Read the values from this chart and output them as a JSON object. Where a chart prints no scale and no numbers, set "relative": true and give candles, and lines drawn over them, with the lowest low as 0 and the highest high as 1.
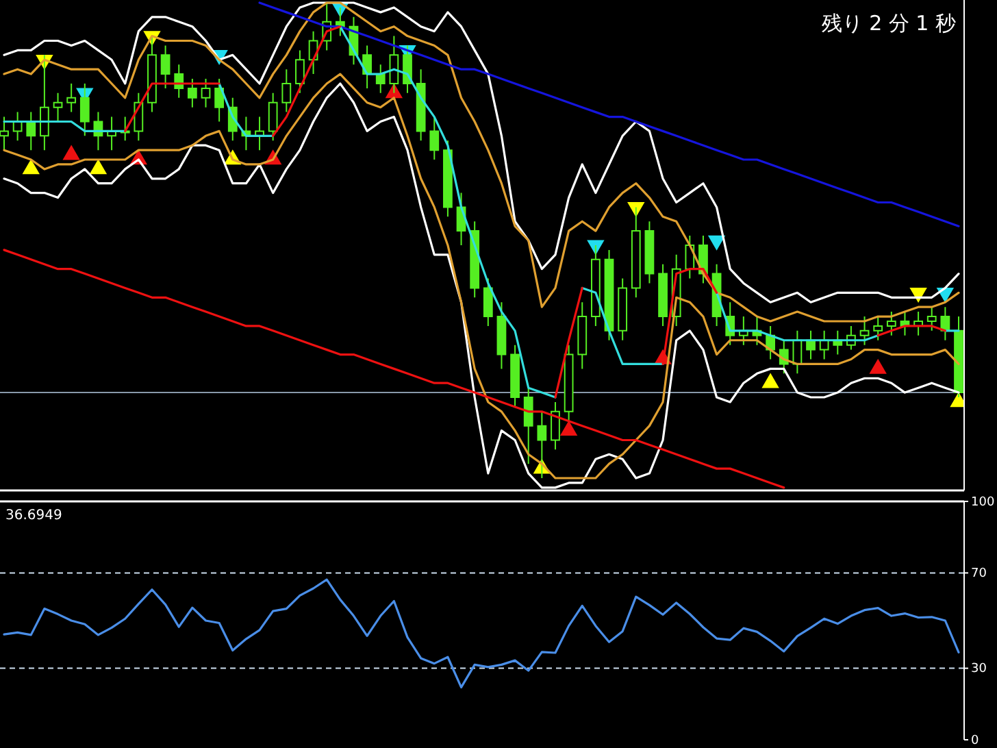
{
  "chart_data": [
    {
      "type": "candlestick",
      "relative": true,
      "tick_labels": false,
      "color": "#55ee22",
      "annotations": [
        "残り 2 分 1 秒"
      ],
      "categories": [
        null,
        null,
        null,
        null,
        null,
        null,
        null,
        null,
        null,
        null,
        null,
        null,
        null,
        null,
        null,
        null,
        null,
        null,
        null,
        null,
        null,
        null,
        null,
        null,
        null,
        null,
        null,
        null,
        null,
        null,
        null,
        null,
        null,
        null,
        null,
        null,
        null,
        null,
        null,
        null,
        null,
        null,
        null,
        null,
        null,
        null,
        null,
        null,
        null,
        null,
        null,
        null,
        null,
        null,
        null,
        null,
        null,
        null,
        null,
        null,
        null,
        null,
        null,
        null,
        null,
        null,
        null,
        null,
        null,
        null,
        null,
        null
      ],
      "ohlc": [
        [
          0.72,
          0.76,
          0.69,
          0.73
        ],
        [
          0.73,
          0.77,
          0.71,
          0.75
        ],
        [
          0.75,
          0.77,
          0.69,
          0.72
        ],
        [
          0.72,
          0.89,
          0.69,
          0.78
        ],
        [
          0.78,
          0.81,
          0.75,
          0.79
        ],
        [
          0.79,
          0.83,
          0.77,
          0.8
        ],
        [
          0.8,
          0.83,
          0.72,
          0.75
        ],
        [
          0.75,
          0.77,
          0.69,
          0.72
        ],
        [
          0.72,
          0.76,
          0.69,
          0.73
        ],
        [
          0.73,
          0.76,
          0.71,
          0.73
        ],
        [
          0.73,
          0.81,
          0.71,
          0.79
        ],
        [
          0.79,
          0.93,
          0.77,
          0.89
        ],
        [
          0.89,
          0.91,
          0.82,
          0.85
        ],
        [
          0.85,
          0.87,
          0.8,
          0.82
        ],
        [
          0.82,
          0.84,
          0.78,
          0.8
        ],
        [
          0.8,
          0.84,
          0.78,
          0.82
        ],
        [
          0.82,
          0.84,
          0.75,
          0.78
        ],
        [
          0.78,
          0.8,
          0.71,
          0.73
        ],
        [
          0.73,
          0.76,
          0.69,
          0.72
        ],
        [
          0.72,
          0.76,
          0.69,
          0.73
        ],
        [
          0.73,
          0.81,
          0.71,
          0.79
        ],
        [
          0.79,
          0.86,
          0.77,
          0.83
        ],
        [
          0.83,
          0.9,
          0.81,
          0.88
        ],
        [
          0.88,
          0.94,
          0.85,
          0.92
        ],
        [
          0.92,
          1,
          0.9,
          0.96
        ],
        [
          0.96,
          0.99,
          0.93,
          0.95
        ],
        [
          0.95,
          0.97,
          0.87,
          0.89
        ],
        [
          0.89,
          0.91,
          0.82,
          0.85
        ],
        [
          0.85,
          0.87,
          0.81,
          0.83
        ],
        [
          0.83,
          0.93,
          0.81,
          0.89
        ],
        [
          0.89,
          0.91,
          0.81,
          0.83
        ],
        [
          0.83,
          0.86,
          0.71,
          0.73
        ],
        [
          0.73,
          0.76,
          0.67,
          0.69
        ],
        [
          0.69,
          0.71,
          0.55,
          0.57
        ],
        [
          0.57,
          0.6,
          0.49,
          0.52
        ],
        [
          0.52,
          0.54,
          0.38,
          0.4
        ],
        [
          0.4,
          0.42,
          0.32,
          0.34
        ],
        [
          0.34,
          0.37,
          0.23,
          0.26
        ],
        [
          0.26,
          0.28,
          0.15,
          0.17
        ],
        [
          0.17,
          0.19,
          0.03,
          0.11
        ],
        [
          0.11,
          0.14,
          0,
          0.08
        ],
        [
          0.08,
          0.16,
          0.06,
          0.14
        ],
        [
          0.14,
          0.28,
          0.12,
          0.26
        ],
        [
          0.26,
          0.37,
          0.23,
          0.34
        ],
        [
          0.34,
          0.49,
          0.32,
          0.46
        ],
        [
          0.46,
          0.48,
          0.29,
          0.31
        ],
        [
          0.31,
          0.42,
          0.29,
          0.4
        ],
        [
          0.4,
          0.57,
          0.38,
          0.52
        ],
        [
          0.52,
          0.54,
          0.41,
          0.43
        ],
        [
          0.43,
          0.45,
          0.32,
          0.34
        ],
        [
          0.34,
          0.47,
          0.32,
          0.44
        ],
        [
          0.44,
          0.51,
          0.42,
          0.49
        ],
        [
          0.49,
          0.51,
          0.41,
          0.43
        ],
        [
          0.43,
          0.45,
          0.32,
          0.34
        ],
        [
          0.34,
          0.37,
          0.28,
          0.3
        ],
        [
          0.3,
          0.34,
          0.28,
          0.31
        ],
        [
          0.31,
          0.34,
          0.28,
          0.3
        ],
        [
          0.3,
          0.32,
          0.25,
          0.27
        ],
        [
          0.27,
          0.29,
          0.22,
          0.24
        ],
        [
          0.24,
          0.31,
          0.22,
          0.29
        ],
        [
          0.29,
          0.31,
          0.25,
          0.27
        ],
        [
          0.27,
          0.31,
          0.25,
          0.29
        ],
        [
          0.29,
          0.31,
          0.26,
          0.28
        ],
        [
          0.28,
          0.32,
          0.27,
          0.3
        ],
        [
          0.3,
          0.34,
          0.28,
          0.31
        ],
        [
          0.31,
          0.34,
          0.29,
          0.32
        ],
        [
          0.32,
          0.35,
          0.3,
          0.33
        ],
        [
          0.33,
          0.35,
          0.3,
          0.32
        ],
        [
          0.32,
          0.35,
          0.3,
          0.33
        ],
        [
          0.33,
          0.36,
          0.31,
          0.34
        ],
        [
          0.34,
          0.36,
          0.29,
          0.31
        ],
        [
          0.31,
          0.34,
          0.17,
          0.18
        ]
      ],
      "series": [
        {
          "type": "line",
          "color": "#ffffff",
          "values": [
            0.89,
            0.9,
            0.9,
            0.92,
            0.92,
            0.91,
            0.92,
            0.9,
            0.88,
            0.83,
            0.94,
            0.97,
            0.97,
            0.96,
            0.95,
            0.92,
            0.88,
            0.89,
            0.86,
            0.83,
            0.89,
            0.95,
            0.99,
            1.0,
            1.0,
            1.0,
            1.0,
            0.99,
            0.98,
            0.99,
            0.97,
            0.95,
            0.94,
            0.98,
            0.95,
            0.9,
            0.85,
            0.72,
            0.54,
            0.5,
            0.44,
            0.47,
            0.59,
            0.66,
            0.6,
            0.66,
            0.72,
            0.75,
            0.73,
            0.63,
            0.58,
            0.6,
            0.62,
            0.57,
            0.44,
            0.41,
            0.39,
            0.37,
            0.38,
            0.39,
            0.37,
            0.38,
            0.39,
            0.39,
            0.39,
            0.39,
            0.38,
            0.38,
            0.38,
            0.38,
            0.4,
            0.43
          ]
        },
        {
          "type": "line",
          "color": "#ffffff",
          "values": [
            0.63,
            0.62,
            0.6,
            0.6,
            0.59,
            0.63,
            0.65,
            0.62,
            0.62,
            0.65,
            0.67,
            0.63,
            0.63,
            0.65,
            0.7,
            0.7,
            0.69,
            0.62,
            0.62,
            0.66,
            0.6,
            0.65,
            0.69,
            0.75,
            0.8,
            0.83,
            0.79,
            0.73,
            0.75,
            0.76,
            0.69,
            0.57,
            0.47,
            0.47,
            0.37,
            0.17,
            0.01,
            0.1,
            0.08,
            0.01,
            -0.02,
            -0.02,
            -0.01,
            -0.01,
            0.04,
            0.05,
            0.04,
            0.0,
            0.01,
            0.08,
            0.29,
            0.31,
            0.27,
            0.17,
            0.16,
            0.2,
            0.22,
            0.23,
            0.23,
            0.18,
            0.17,
            0.17,
            0.18,
            0.2,
            0.21,
            0.21,
            0.2,
            0.18,
            0.19,
            0.2,
            0.19,
            0.18
          ]
        },
        {
          "type": "line",
          "color": "#e0a030",
          "values": [
            0.85,
            0.86,
            0.85,
            0.88,
            0.87,
            0.86,
            0.86,
            0.86,
            0.83,
            0.8,
            0.88,
            0.93,
            0.92,
            0.92,
            0.92,
            0.91,
            0.88,
            0.86,
            0.83,
            0.8,
            0.85,
            0.89,
            0.94,
            0.98,
            1.0,
            1.0,
            0.98,
            0.96,
            0.94,
            0.95,
            0.93,
            0.92,
            0.91,
            0.89,
            0.8,
            0.75,
            0.69,
            0.62,
            0.53,
            0.5,
            0.36,
            0.4,
            0.52,
            0.54,
            0.52,
            0.57,
            0.6,
            0.62,
            0.59,
            0.55,
            0.54,
            0.49,
            0.43,
            0.39,
            0.38,
            0.36,
            0.34,
            0.33,
            0.34,
            0.35,
            0.34,
            0.33,
            0.33,
            0.33,
            0.33,
            0.34,
            0.34,
            0.35,
            0.36,
            0.36,
            0.37,
            0.39
          ]
        },
        {
          "type": "line",
          "color": "#e0a030",
          "values": [
            0.69,
            0.68,
            0.67,
            0.65,
            0.66,
            0.66,
            0.67,
            0.67,
            0.67,
            0.67,
            0.69,
            0.69,
            0.69,
            0.69,
            0.7,
            0.72,
            0.73,
            0.67,
            0.66,
            0.66,
            0.67,
            0.72,
            0.76,
            0.8,
            0.83,
            0.85,
            0.82,
            0.79,
            0.78,
            0.8,
            0.72,
            0.63,
            0.57,
            0.49,
            0.37,
            0.23,
            0.16,
            0.14,
            0.1,
            0.05,
            0.03,
            0.0,
            0.0,
            0.0,
            0.0,
            0.03,
            0.05,
            0.08,
            0.11,
            0.16,
            0.38,
            0.37,
            0.34,
            0.26,
            0.29,
            0.29,
            0.29,
            0.27,
            0.25,
            0.24,
            0.24,
            0.24,
            0.24,
            0.25,
            0.27,
            0.27,
            0.26,
            0.26,
            0.26,
            0.26,
            0.27,
            0.24
          ]
        },
        {
          "type": "line",
          "color": "#1515dd",
          "values": [
            null,
            null,
            null,
            null,
            null,
            null,
            null,
            null,
            null,
            null,
            null,
            null,
            null,
            null,
            null,
            null,
            null,
            null,
            null,
            1.0,
            0.99,
            0.98,
            0.97,
            0.96,
            0.95,
            0.95,
            0.94,
            0.93,
            0.92,
            0.91,
            0.9,
            0.89,
            0.88,
            0.87,
            0.86,
            0.86,
            0.85,
            0.84,
            0.83,
            0.82,
            0.81,
            0.8,
            0.79,
            0.78,
            0.77,
            0.76,
            0.76,
            0.75,
            0.74,
            0.73,
            0.72,
            0.71,
            0.7,
            0.69,
            0.68,
            0.67,
            0.67,
            0.66,
            0.65,
            0.64,
            0.63,
            0.62,
            0.61,
            0.6,
            0.59,
            0.58,
            0.58,
            0.57,
            0.56,
            0.55,
            0.54,
            0.53
          ]
        },
        {
          "type": "line",
          "color": "#ee1111",
          "values": [
            0.48,
            0.47,
            0.46,
            0.45,
            0.44,
            0.44,
            0.43,
            0.42,
            0.41,
            0.4,
            0.39,
            0.38,
            0.38,
            0.37,
            0.36,
            0.35,
            0.34,
            0.33,
            0.32,
            0.32,
            0.31,
            0.3,
            0.29,
            0.28,
            0.27,
            0.26,
            0.26,
            0.25,
            0.24,
            0.23,
            0.22,
            0.21,
            0.2,
            0.2,
            0.19,
            0.18,
            0.17,
            0.16,
            0.15,
            0.14,
            0.14,
            0.13,
            0.12,
            0.11,
            0.1,
            0.09,
            0.08,
            0.08,
            0.07,
            0.06,
            0.05,
            0.04,
            0.03,
            0.02,
            0.02,
            0.01,
            0.0,
            -0.01,
            -0.02,
            null,
            null,
            null,
            null,
            null,
            null,
            null,
            null,
            null,
            null,
            null,
            null,
            null
          ]
        },
        {
          "type": "line",
          "color": "#33dddd",
          "values": [
            0.75,
            0.75,
            0.75,
            0.75,
            0.75,
            0.75,
            0.73,
            0.73,
            0.73,
            0.73,
            null,
            null,
            null,
            null,
            null,
            null,
            0.83,
            0.76,
            0.72,
            0.72,
            0.72,
            null,
            null,
            null,
            null,
            0.95,
            0.9,
            0.85,
            0.85,
            0.86,
            0.85,
            0.8,
            0.76,
            0.7,
            0.57,
            0.49,
            0.41,
            0.35,
            0.31,
            0.19,
            0.18,
            0.17,
            null,
            0.4,
            0.39,
            0.31,
            0.24,
            0.24,
            0.24,
            0.24,
            null,
            null,
            null,
            0.39,
            0.31,
            0.31,
            0.31,
            0.3,
            0.29,
            0.29,
            0.29,
            0.29,
            0.29,
            0.29,
            0.29,
            0.3,
            null,
            null,
            null,
            null,
            0.31,
            0.31
          ]
        },
        {
          "type": "line",
          "color": "#ee1111",
          "values": [
            null,
            null,
            null,
            null,
            null,
            null,
            null,
            null,
            null,
            0.73,
            0.78,
            0.83,
            0.83,
            0.83,
            0.83,
            0.83,
            0.83,
            null,
            null,
            null,
            0.72,
            0.76,
            0.82,
            0.88,
            0.94,
            0.95,
            null,
            null,
            null,
            null,
            null,
            null,
            null,
            null,
            null,
            null,
            null,
            null,
            null,
            null,
            null,
            0.17,
            0.29,
            0.4,
            null,
            null,
            null,
            null,
            null,
            0.24,
            0.43,
            0.44,
            0.44,
            0.39,
            null,
            null,
            null,
            null,
            null,
            null,
            null,
            null,
            null,
            null,
            null,
            0.3,
            0.31,
            0.32,
            0.32,
            0.32,
            0.31,
            null
          ]
        },
        {
          "type": "scatter",
          "marker": "triangle",
          "color": "#ffff00",
          "values": [
            null,
            null,
            null,
            0.88,
            null,
            null,
            null,
            null,
            null,
            null,
            null,
            0.93,
            null,
            null,
            null,
            null,
            null,
            null,
            null,
            null,
            null,
            null,
            null,
            null,
            null,
            null,
            null,
            null,
            null,
            null,
            null,
            null,
            null,
            null,
            null,
            null,
            null,
            null,
            null,
            null,
            null,
            null,
            null,
            null,
            null,
            null,
            null,
            0.57,
            null,
            null,
            null,
            null,
            null,
            null,
            null,
            null,
            null,
            null,
            null,
            null,
            null,
            null,
            null,
            null,
            null,
            null,
            null,
            null,
            0.39,
            null,
            null,
            null
          ]
        },
        {
          "type": "scatter",
          "marker": "triangle",
          "color": "#22ddee",
          "values": [
            null,
            null,
            null,
            null,
            null,
            null,
            0.81,
            null,
            null,
            null,
            null,
            null,
            null,
            null,
            null,
            null,
            0.89,
            null,
            null,
            null,
            null,
            null,
            null,
            null,
            null,
            0.99,
            null,
            null,
            null,
            null,
            0.9,
            null,
            null,
            null,
            null,
            null,
            null,
            null,
            null,
            null,
            null,
            null,
            null,
            null,
            0.49,
            null,
            null,
            null,
            null,
            null,
            null,
            null,
            null,
            0.5,
            null,
            null,
            null,
            null,
            null,
            null,
            null,
            null,
            null,
            null,
            null,
            null,
            null,
            null,
            null,
            null,
            0.39,
            null
          ]
        },
        {
          "type": "scatter",
          "marker": "triangle",
          "color": "#ee1111",
          "values": [
            null,
            null,
            null,
            null,
            null,
            0.68,
            null,
            null,
            null,
            null,
            0.67,
            null,
            null,
            null,
            null,
            null,
            null,
            null,
            null,
            null,
            0.67,
            null,
            null,
            null,
            null,
            null,
            null,
            null,
            null,
            0.81,
            null,
            null,
            null,
            null,
            null,
            null,
            null,
            null,
            null,
            null,
            null,
            null,
            0.1,
            null,
            null,
            null,
            null,
            null,
            null,
            0.25,
            null,
            null,
            null,
            null,
            null,
            null,
            null,
            null,
            null,
            null,
            null,
            null,
            null,
            null,
            null,
            0.23,
            null,
            null,
            null,
            null,
            null,
            null
          ]
        },
        {
          "type": "scatter",
          "marker": "triangle",
          "color": "#ffff00",
          "values": [
            null,
            null,
            0.65,
            null,
            null,
            null,
            null,
            0.65,
            null,
            null,
            null,
            null,
            null,
            null,
            null,
            null,
            null,
            0.67,
            null,
            null,
            null,
            null,
            null,
            null,
            null,
            null,
            null,
            null,
            null,
            null,
            null,
            null,
            null,
            null,
            null,
            null,
            null,
            null,
            null,
            null,
            0.02,
            null,
            null,
            null,
            null,
            null,
            null,
            null,
            null,
            null,
            null,
            null,
            null,
            null,
            null,
            null,
            null,
            0.2,
            null,
            null,
            null,
            null,
            null,
            null,
            null,
            null,
            null,
            null,
            null,
            null,
            null,
            0.16
          ]
        }
      ],
      "ref_lines": [
        {
          "axis": "y",
          "value": 0.18,
          "color": "#8899aa"
        }
      ]
    },
    {
      "type": "line",
      "title": "36.6949",
      "tick_labels": "y",
      "categories": [
        null,
        null,
        null,
        null,
        null,
        null,
        null,
        null,
        null,
        null,
        null,
        null,
        null,
        null,
        null,
        null,
        null,
        null,
        null,
        null,
        null,
        null,
        null,
        null,
        null,
        null,
        null,
        null,
        null,
        null,
        null,
        null,
        null,
        null,
        null,
        null,
        null,
        null,
        null,
        null,
        null,
        null,
        null,
        null,
        null,
        null,
        null,
        null,
        null,
        null,
        null,
        null,
        null,
        null,
        null,
        null,
        null,
        null,
        null,
        null,
        null,
        null,
        null,
        null,
        null,
        null,
        null,
        null,
        null,
        null,
        null,
        null
      ],
      "ylim": [
        0,
        100
      ],
      "yticks": [
        0,
        30,
        70,
        100
      ],
      "series": [
        {
          "color": "#4a8ee8",
          "values": [
            44.2,
            45,
            44,
            55,
            52.7,
            50,
            48.5,
            44,
            47,
            50.8,
            57,
            63,
            56.7,
            47.4,
            55.4,
            50,
            49,
            37.5,
            42.3,
            46,
            54,
            55,
            60.5,
            63.5,
            67.2,
            58.8,
            52,
            43.6,
            52,
            58.2,
            43,
            34.2,
            32,
            34.7,
            22,
            31.5,
            30.5,
            31.5,
            33.3,
            29,
            36.8,
            36.5,
            47.8,
            56.2,
            47.8,
            41,
            45.5,
            60,
            56.5,
            52.5,
            57.5,
            52.8,
            47.2,
            42.5,
            41.9,
            46.8,
            45.3,
            41.5,
            37.1,
            43.5,
            47,
            50.8,
            48.7,
            52,
            54.4,
            55.3,
            52,
            53,
            51.3,
            51.5,
            50,
            36.7
          ]
        }
      ],
      "ref_lines": [
        {
          "axis": "y",
          "value": 70,
          "line_style": "dashed",
          "color": "#ccddee"
        },
        {
          "axis": "y",
          "value": 30,
          "line_style": "dashed",
          "color": "#ccddee"
        }
      ]
    }
  ]
}
